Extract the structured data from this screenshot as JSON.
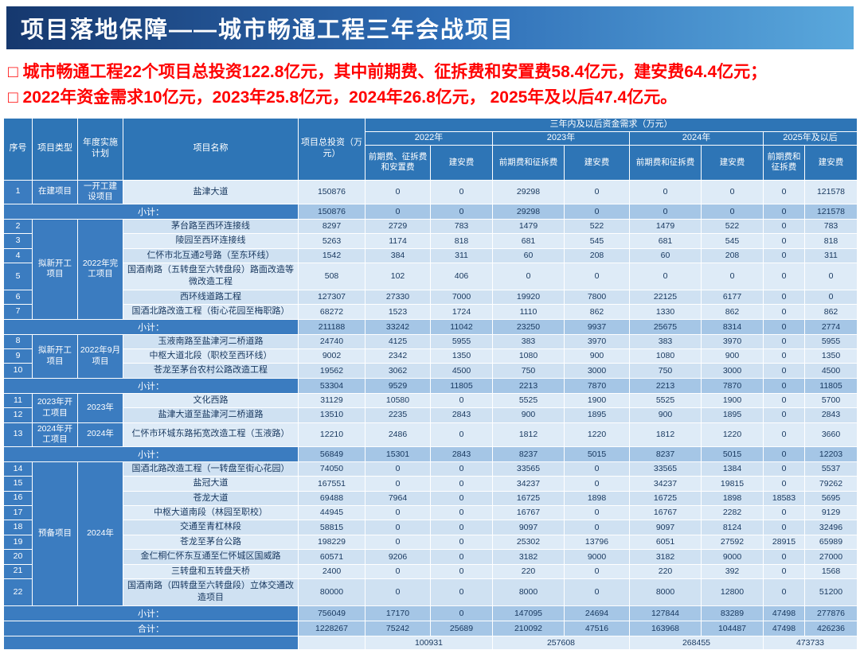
{
  "header": {
    "title": "项目落地保障——城市畅通工程三年会战项目"
  },
  "bullets": [
    "□ 城市畅通工程22个项目总投资122.8亿元，其中前期费、征拆费和安置费58.4亿元，建安费64.4亿元；",
    "□ 2022年资金需求10亿元，2023年25.8亿元，2024年26.8亿元， 2025年及以后47.4亿元。"
  ],
  "table": {
    "header": {
      "no": "序号",
      "type": "项目类型",
      "plan": "年度实施计划",
      "name": "项目名称",
      "invest": "项目总投资（万元）",
      "group_title": "三年内及以后资金需求（万元）",
      "years": [
        "2022年",
        "2023年",
        "2024年",
        "2025年及以后"
      ],
      "subcols": [
        "前期费、征拆费和安置费",
        "建安费",
        "前期费和征拆费",
        "建安费",
        "前期费和征拆费",
        "建安费",
        "前期费和征拆费",
        "建安费"
      ]
    },
    "rows": [
      {
        "kind": "data",
        "no": "1",
        "type": "在建项目",
        "type_span": 1,
        "plan": "一开工建设项目",
        "plan_span": 1,
        "name": "盐津大道",
        "values": [
          "150876",
          "0",
          "0",
          "29298",
          "0",
          "0",
          "0",
          "0",
          "121578"
        ]
      },
      {
        "kind": "subtotal",
        "label": "小计：",
        "values": [
          "150876",
          "0",
          "0",
          "29298",
          "0",
          "0",
          "0",
          "0",
          "121578"
        ]
      },
      {
        "kind": "data",
        "no": "2",
        "type": "拟新开工项目",
        "type_span": 6,
        "plan": "2022年完工项目",
        "plan_span": 6,
        "name": "茅台路至西环连接线",
        "values": [
          "8297",
          "2729",
          "783",
          "1479",
          "522",
          "1479",
          "522",
          "0",
          "783"
        ]
      },
      {
        "kind": "data",
        "no": "3",
        "name": "陵园至西环连接线",
        "values": [
          "5263",
          "1174",
          "818",
          "681",
          "545",
          "681",
          "545",
          "0",
          "818"
        ]
      },
      {
        "kind": "data",
        "no": "4",
        "name": "仁怀市北互通2号路（至东环线）",
        "values": [
          "1542",
          "384",
          "311",
          "60",
          "208",
          "60",
          "208",
          "0",
          "311"
        ]
      },
      {
        "kind": "data",
        "no": "5",
        "name": "国酒南路（五转盘至六转盘段）路面改造等微改造工程",
        "values": [
          "508",
          "102",
          "406",
          "0",
          "0",
          "0",
          "0",
          "0",
          "0"
        ]
      },
      {
        "kind": "data",
        "no": "6",
        "name": "西环线道路工程",
        "values": [
          "127307",
          "27330",
          "7000",
          "19920",
          "7800",
          "22125",
          "6177",
          "0",
          "0"
        ]
      },
      {
        "kind": "data",
        "no": "7",
        "name": "国酒北路改造工程（街心花园至梅职路）",
        "values": [
          "68272",
          "1523",
          "1724",
          "1110",
          "862",
          "1330",
          "862",
          "0",
          "862"
        ]
      },
      {
        "kind": "subtotal",
        "label": "小计：",
        "values": [
          "211188",
          "33242",
          "11042",
          "23250",
          "9937",
          "25675",
          "8314",
          "0",
          "2774"
        ]
      },
      {
        "kind": "data",
        "no": "8",
        "type": "拟新开工项目",
        "type_span": 3,
        "plan": "2022年9月项目",
        "plan_span": 3,
        "name": "玉液南路至盐津河二桥道路",
        "values": [
          "24740",
          "4125",
          "5955",
          "383",
          "3970",
          "383",
          "3970",
          "0",
          "5955"
        ]
      },
      {
        "kind": "data",
        "no": "9",
        "name": "中枢大道北段（职校至西环线）",
        "values": [
          "9002",
          "2342",
          "1350",
          "1080",
          "900",
          "1080",
          "900",
          "0",
          "1350"
        ]
      },
      {
        "kind": "data",
        "no": "10",
        "name": "苍龙至茅台农村公路改造工程",
        "values": [
          "19562",
          "3062",
          "4500",
          "750",
          "3000",
          "750",
          "3000",
          "0",
          "4500"
        ]
      },
      {
        "kind": "subtotal",
        "label": "小计：",
        "values": [
          "53304",
          "9529",
          "11805",
          "2213",
          "7870",
          "2213",
          "7870",
          "0",
          "11805"
        ]
      },
      {
        "kind": "data",
        "no": "11",
        "type": "2023年开工项目",
        "type_span": 2,
        "plan": "2023年",
        "plan_span": 2,
        "name": "文化西路",
        "values": [
          "31129",
          "10580",
          "0",
          "5525",
          "1900",
          "5525",
          "1900",
          "0",
          "5700"
        ]
      },
      {
        "kind": "data",
        "no": "12",
        "name": "盐津大道至盐津河二桥道路",
        "values": [
          "13510",
          "2235",
          "2843",
          "900",
          "1895",
          "900",
          "1895",
          "0",
          "2843"
        ]
      },
      {
        "kind": "data",
        "no": "13",
        "type": "2024年开工项目",
        "type_span": 1,
        "plan": "2024年",
        "plan_span": 1,
        "name": "仁怀市环城东路拓宽改造工程（玉液路）",
        "values": [
          "12210",
          "2486",
          "0",
          "1812",
          "1220",
          "1812",
          "1220",
          "0",
          "3660"
        ]
      },
      {
        "kind": "subtotal",
        "label": "小计：",
        "values": [
          "56849",
          "15301",
          "2843",
          "8237",
          "5015",
          "8237",
          "5015",
          "0",
          "12203"
        ]
      },
      {
        "kind": "data",
        "no": "14",
        "type": "预备项目",
        "type_span": 9,
        "plan": "2024年",
        "plan_span": 9,
        "name": "国酒北路改造工程（一转盘至街心花园）",
        "values": [
          "74050",
          "0",
          "0",
          "33565",
          "0",
          "33565",
          "1384",
          "0",
          "5537"
        ]
      },
      {
        "kind": "data",
        "no": "15",
        "name": "盐冠大道",
        "values": [
          "167551",
          "0",
          "0",
          "34237",
          "0",
          "34237",
          "19815",
          "0",
          "79262"
        ]
      },
      {
        "kind": "data",
        "no": "16",
        "name": "苍龙大道",
        "values": [
          "69488",
          "7964",
          "0",
          "16725",
          "1898",
          "16725",
          "1898",
          "18583",
          "5695"
        ]
      },
      {
        "kind": "data",
        "no": "17",
        "name": "中枢大道南段（林园至职校）",
        "values": [
          "44945",
          "0",
          "0",
          "16767",
          "0",
          "16767",
          "2282",
          "0",
          "9129"
        ]
      },
      {
        "kind": "data",
        "no": "18",
        "name": "交通至青杠林段",
        "values": [
          "58815",
          "0",
          "0",
          "9097",
          "0",
          "9097",
          "8124",
          "0",
          "32496"
        ]
      },
      {
        "kind": "data",
        "no": "19",
        "name": "苍龙至茅台公路",
        "values": [
          "198229",
          "0",
          "0",
          "25302",
          "13796",
          "6051",
          "27592",
          "28915",
          "65989"
        ]
      },
      {
        "kind": "data",
        "no": "20",
        "name": "金仁桐仁怀东互通至仁怀城区国威路",
        "values": [
          "60571",
          "9206",
          "0",
          "3182",
          "9000",
          "3182",
          "9000",
          "0",
          "27000"
        ]
      },
      {
        "kind": "data",
        "no": "21",
        "name": "三转盘和五转盘天桥",
        "values": [
          "2400",
          "0",
          "0",
          "220",
          "0",
          "220",
          "392",
          "0",
          "1568"
        ]
      },
      {
        "kind": "data",
        "no": "22",
        "name": "国酒南路（四转盘至六转盘段）立体交通改造项目",
        "values": [
          "80000",
          "0",
          "0",
          "8000",
          "0",
          "8000",
          "12800",
          "0",
          "51200"
        ]
      },
      {
        "kind": "subtotal",
        "label": "小计：",
        "values": [
          "756049",
          "17170",
          "0",
          "147095",
          "24694",
          "127844",
          "83289",
          "47498",
          "277876"
        ]
      },
      {
        "kind": "total",
        "label": "合计：",
        "values": [
          "1228267",
          "75242",
          "25689",
          "210092",
          "47516",
          "163968",
          "104487",
          "47498",
          "426236"
        ]
      },
      {
        "kind": "year-total",
        "values": [
          "100931",
          "257608",
          "268455",
          "473733"
        ]
      }
    ]
  },
  "colors": {
    "title_gradient": [
      "#16386e",
      "#2e6db6",
      "#5aa8dc"
    ],
    "bullet_red": "#ff0000",
    "header_blue": "#2e75b6",
    "left_cell_blue": "#3b7cc0",
    "row_light": "#deebf7",
    "row_alt": "#cfe1f2",
    "subtotal_bg": "#a5c6e6",
    "text_dark": "#17375e"
  }
}
